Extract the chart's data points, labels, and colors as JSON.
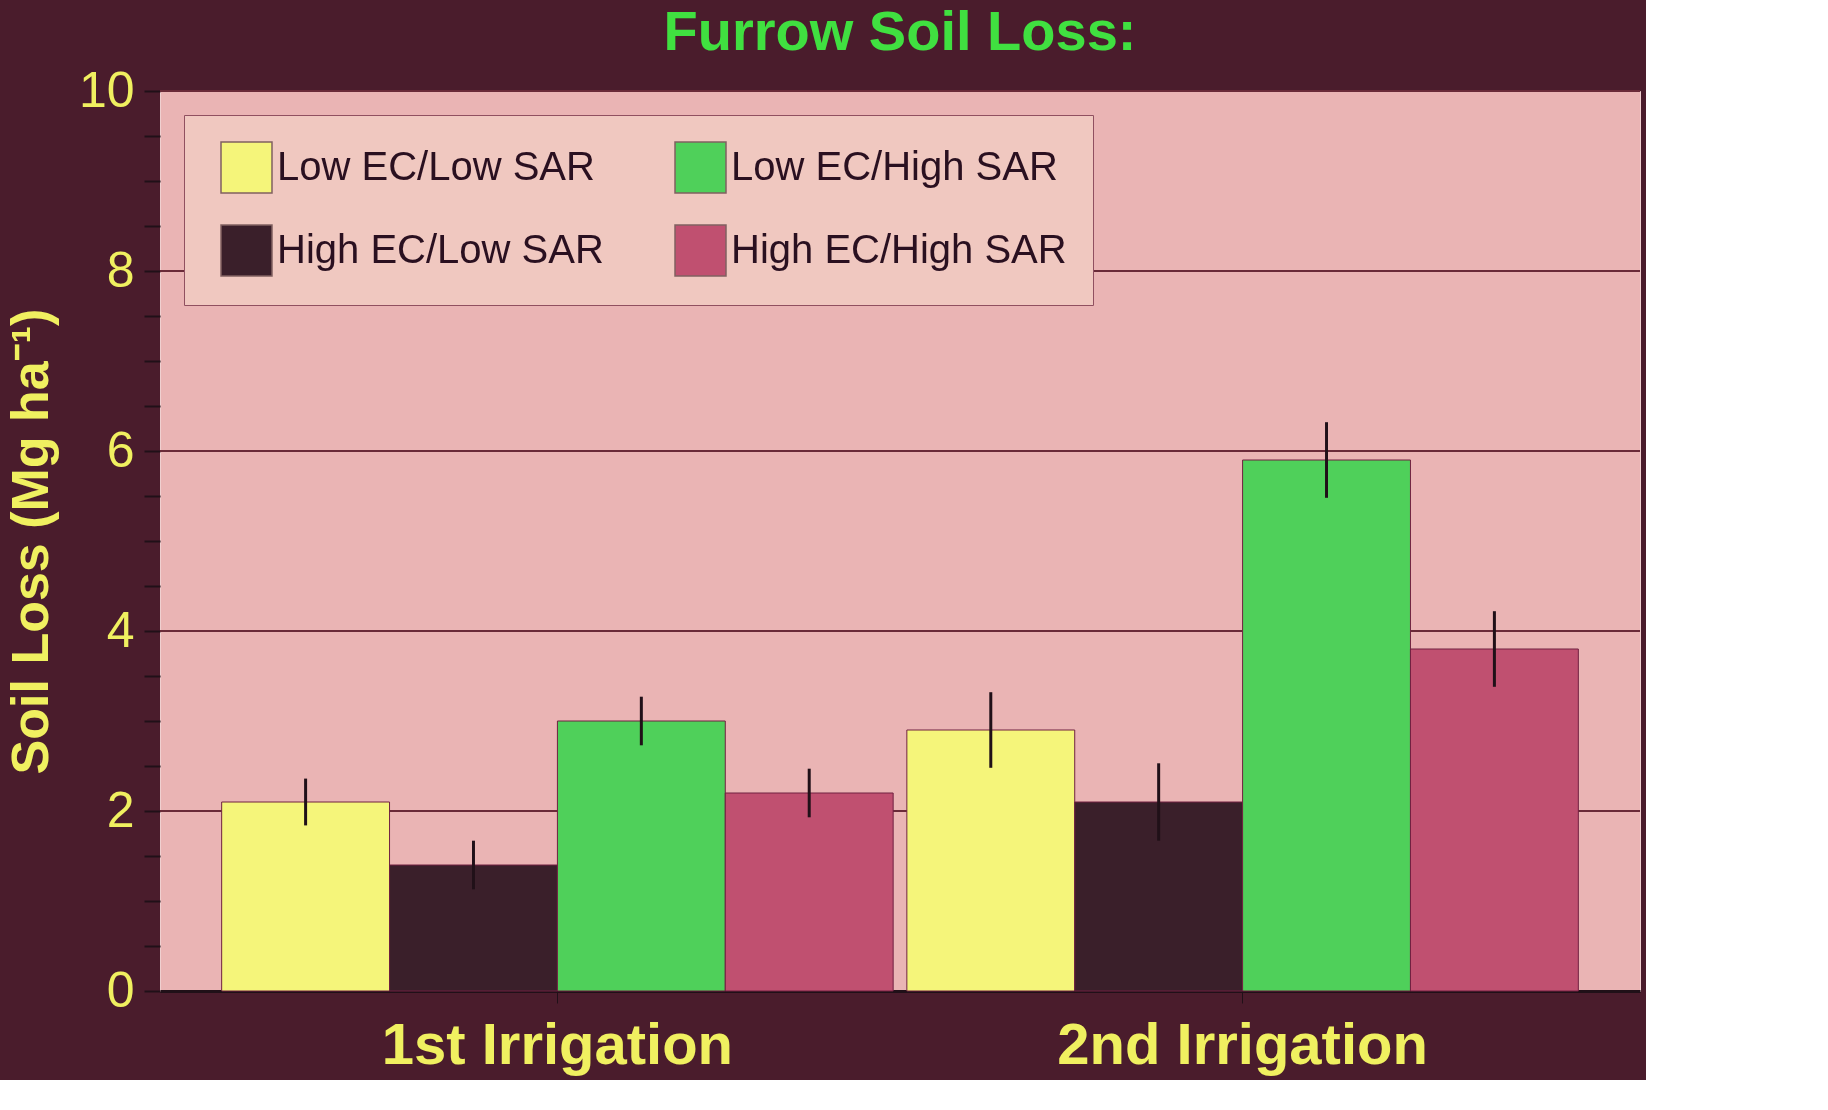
{
  "chart_data": {
    "type": "bar",
    "title": "Furrow Soil Loss:",
    "ylabel": "Soil Loss (Mg ha⁻¹)",
    "categories": [
      "1st Irrigation",
      "2nd Irrigation"
    ],
    "series": [
      {
        "name": "Low EC/Low SAR",
        "color": "#f5f57a",
        "values": [
          2.1,
          2.9
        ],
        "errors": [
          0.26,
          0.42
        ]
      },
      {
        "name": "High EC/Low SAR",
        "color": "#3a1f2a",
        "values": [
          1.4,
          2.1
        ],
        "errors": [
          0.27,
          0.43
        ]
      },
      {
        "name": "Low EC/High SAR",
        "color": "#4fd05a",
        "values": [
          3.0,
          5.9
        ],
        "errors": [
          0.27,
          0.42
        ]
      },
      {
        "name": "High EC/High SAR",
        "color": "#c05070",
        "values": [
          2.2,
          3.8
        ],
        "errors": [
          0.27,
          0.42
        ]
      }
    ],
    "ylim": [
      0,
      10
    ],
    "yticks": [
      0,
      {
        "value": 0.5,
        "label": null
      },
      {
        "value": 1,
        "label": null
      },
      {
        "value": 1.5,
        "label": null
      },
      2,
      {
        "value": 2.5,
        "label": null
      },
      {
        "value": 3,
        "label": null
      },
      {
        "value": 3.5,
        "label": null
      },
      4,
      {
        "value": 4.5,
        "label": null
      },
      {
        "value": 5,
        "label": null
      },
      {
        "value": 5.5,
        "label": null
      },
      6,
      {
        "value": 6.5,
        "label": null
      },
      {
        "value": 7,
        "label": null
      },
      {
        "value": 7.5,
        "label": null
      },
      8,
      {
        "value": 8.5,
        "label": null
      },
      {
        "value": 9,
        "label": null
      },
      {
        "value": 9.5,
        "label": null
      },
      10
    ],
    "grid": "y",
    "legend": "top"
  }
}
